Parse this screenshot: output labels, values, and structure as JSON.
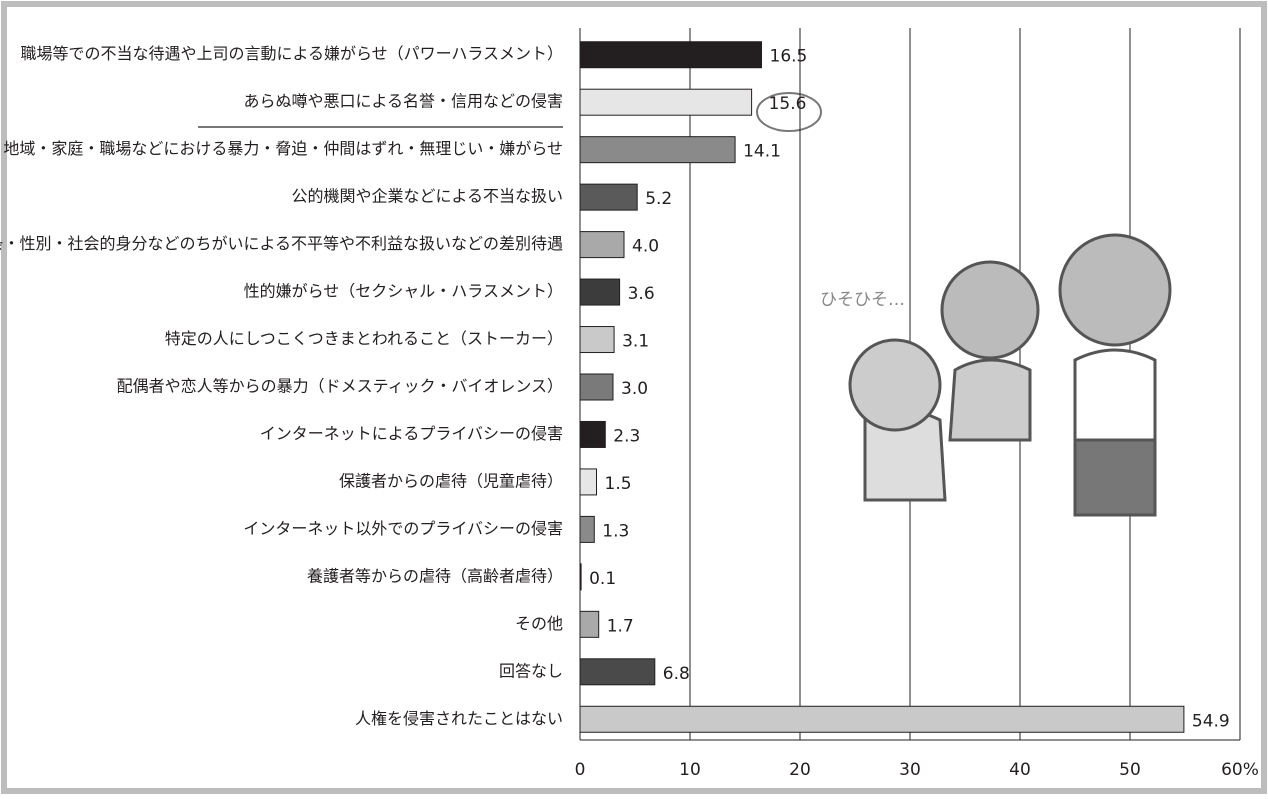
{
  "chart_data": {
    "type": "hbar",
    "categories": [
      "職場等での不当な待遇や上司の言動による嫌がらせ（パワーハラスメント）",
      "あらぬ噂や悪口による名誉・信用などの侵害",
      "地域・家庭・職場などにおける暴力・脅迫・仲間はずれ・無理じい・嫌がらせ",
      "公的機関や企業などによる不当な扱い",
      "信条・性別・社会的身分などのちがいによる不平等や不利益な扱いなどの差別待遇",
      "性的嫌がらせ（セクシャル・ハラスメント）",
      "特定の人にしつこくつきまとわれること（ストーカー）",
      "配偶者や恋人等からの暴力（ドメスティック・バイオレンス）",
      "インターネットによるプライバシーの侵害",
      "保護者からの虐待（児童虐待）",
      "インターネット以外でのプライバシーの侵害",
      "養護者等からの虐待（高齢者虐待）",
      "その他",
      "回答なし",
      "人権を侵害されたことはない"
    ],
    "values": [
      16.5,
      15.6,
      14.1,
      5.2,
      4.0,
      3.6,
      3.1,
      3.0,
      2.3,
      1.5,
      1.3,
      0.1,
      1.7,
      6.8,
      54.9
    ],
    "value_labels": [
      "16.5",
      "15.6",
      "14.1",
      "5.2",
      "4.0",
      "3.6",
      "3.1",
      "3.0",
      "2.3",
      "1.5",
      "1.3",
      "0.1",
      "1.7",
      "6.8",
      "54.9"
    ],
    "colors": [
      "#231f20",
      "#e6e6e6",
      "#8a8a8a",
      "#5a5a5a",
      "#a9a9a9",
      "#3c3c3c",
      "#c9c9c9",
      "#7a7a7a",
      "#231f20",
      "#e6e6e6",
      "#8a8a8a",
      "#3c3c3c",
      "#a9a9a9",
      "#4a4a4a",
      "#c9c9c9"
    ],
    "xlim": [
      0,
      60
    ],
    "xticks": [
      0,
      10,
      20,
      30,
      40,
      50,
      {
        "value": 60,
        "label": "60%"
      }
    ],
    "grid": true,
    "annotation": "ひそひそ…"
  }
}
